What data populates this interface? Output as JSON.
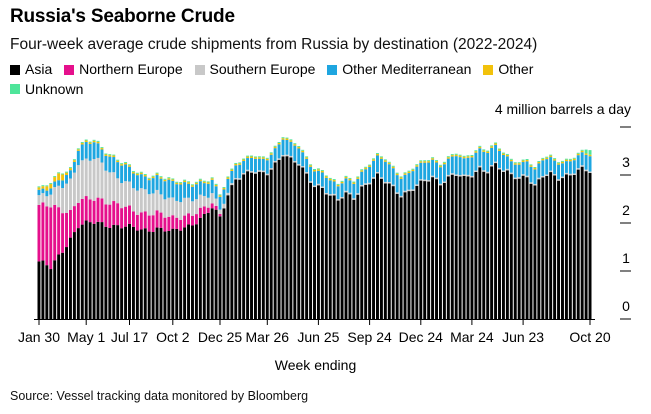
{
  "header": {
    "title": "Russia's Seaborne Crude",
    "subtitle": "Four-week average crude shipments from Russia by destination (2022-2024)"
  },
  "legend": [
    {
      "label": "Asia",
      "color": "#000000"
    },
    {
      "label": "Northern Europe",
      "color": "#e5108c"
    },
    {
      "label": "Southern Europe",
      "color": "#c8c8c8"
    },
    {
      "label": "Other Mediterranean",
      "color": "#1ea6e0"
    },
    {
      "label": "Other",
      "color": "#f2c20c"
    },
    {
      "label": "Unknown",
      "color": "#4ee59a"
    }
  ],
  "y_unit_label": "4 million barrels a day",
  "x_axis_title": "Week ending",
  "source": "Source: Vessel tracking data monitored by Bloomberg",
  "chart_data": {
    "type": "bar",
    "stacked": true,
    "title": "Russia's Seaborne Crude",
    "subtitle": "Four-week average crude shipments from Russia by destination (2022-2024)",
    "xlabel": "Week ending",
    "ylabel": "million barrels a day",
    "ylim": [
      0,
      4
    ],
    "yticks": [
      0,
      1,
      2,
      3,
      4
    ],
    "grid": false,
    "legend_position": "top-left",
    "x_tick_labels": [
      "Jan 30",
      "May 1",
      "Jul 17",
      "Oct 2",
      "Dec 25",
      "Mar 26",
      "Jun 25",
      "Sep 24",
      "Dec 24",
      "Mar 24",
      "Jun 23",
      "Oct 20"
    ],
    "x_tick_positions": [
      0,
      12,
      23,
      34,
      46,
      58,
      71,
      84,
      97,
      110,
      123,
      140
    ],
    "bar_count": 141,
    "anchors": {
      "Asia": [
        [
          0,
          1.2
        ],
        [
          3,
          1.05
        ],
        [
          5,
          1.3
        ],
        [
          10,
          1.95
        ],
        [
          14,
          2.0
        ],
        [
          20,
          1.95
        ],
        [
          26,
          1.85
        ],
        [
          30,
          1.9
        ],
        [
          34,
          1.8
        ],
        [
          38,
          1.95
        ],
        [
          42,
          2.15
        ],
        [
          44,
          2.3
        ],
        [
          46,
          2.1
        ],
        [
          48,
          2.6
        ],
        [
          50,
          2.95
        ],
        [
          54,
          3.05
        ],
        [
          56,
          3.0
        ],
        [
          58,
          3.05
        ],
        [
          60,
          3.25
        ],
        [
          62,
          3.45
        ],
        [
          64,
          3.3
        ],
        [
          66,
          3.2
        ],
        [
          68,
          3.0
        ],
        [
          70,
          2.8
        ],
        [
          72,
          2.75
        ],
        [
          74,
          2.55
        ],
        [
          76,
          2.45
        ],
        [
          78,
          2.6
        ],
        [
          80,
          2.55
        ],
        [
          82,
          2.75
        ],
        [
          84,
          2.85
        ],
        [
          86,
          2.95
        ],
        [
          88,
          2.85
        ],
        [
          90,
          2.75
        ],
        [
          92,
          2.6
        ],
        [
          94,
          2.65
        ],
        [
          96,
          2.75
        ],
        [
          98,
          2.85
        ],
        [
          100,
          2.95
        ],
        [
          102,
          2.85
        ],
        [
          104,
          2.95
        ],
        [
          106,
          3.0
        ],
        [
          108,
          2.9
        ],
        [
          110,
          3.0
        ],
        [
          112,
          3.15
        ],
        [
          114,
          3.1
        ],
        [
          116,
          3.2
        ],
        [
          118,
          3.05
        ],
        [
          120,
          3.0
        ],
        [
          122,
          2.95
        ],
        [
          124,
          3.0
        ],
        [
          126,
          2.75
        ],
        [
          128,
          2.95
        ],
        [
          130,
          3.0
        ],
        [
          132,
          2.95
        ],
        [
          134,
          3.0
        ],
        [
          136,
          3.05
        ],
        [
          138,
          3.1
        ],
        [
          140,
          3.05
        ]
      ],
      "Northern Europe": [
        [
          0,
          1.15
        ],
        [
          3,
          1.3
        ],
        [
          5,
          1.0
        ],
        [
          8,
          0.55
        ],
        [
          12,
          0.5
        ],
        [
          16,
          0.5
        ],
        [
          20,
          0.45
        ],
        [
          24,
          0.35
        ],
        [
          28,
          0.35
        ],
        [
          32,
          0.3
        ],
        [
          36,
          0.25
        ],
        [
          40,
          0.2
        ],
        [
          44,
          0.1
        ],
        [
          46,
          0.05
        ],
        [
          47,
          0.0
        ],
        [
          140,
          0.0
        ]
      ],
      "Southern Europe": [
        [
          0,
          0.2
        ],
        [
          3,
          0.25
        ],
        [
          5,
          0.45
        ],
        [
          8,
          0.65
        ],
        [
          10,
          0.8
        ],
        [
          12,
          0.8
        ],
        [
          14,
          0.85
        ],
        [
          17,
          0.7
        ],
        [
          20,
          0.55
        ],
        [
          24,
          0.5
        ],
        [
          28,
          0.45
        ],
        [
          32,
          0.4
        ],
        [
          36,
          0.35
        ],
        [
          40,
          0.3
        ],
        [
          44,
          0.2
        ],
        [
          46,
          0.1
        ],
        [
          48,
          0.05
        ],
        [
          50,
          0.03
        ],
        [
          140,
          0.03
        ]
      ],
      "Other Mediterranean": [
        [
          0,
          0.1
        ],
        [
          3,
          0.1
        ],
        [
          8,
          0.2
        ],
        [
          12,
          0.35
        ],
        [
          16,
          0.3
        ],
        [
          20,
          0.35
        ],
        [
          24,
          0.3
        ],
        [
          28,
          0.3
        ],
        [
          32,
          0.35
        ],
        [
          36,
          0.35
        ],
        [
          40,
          0.3
        ],
        [
          44,
          0.25
        ],
        [
          48,
          0.3
        ],
        [
          52,
          0.25
        ],
        [
          56,
          0.25
        ],
        [
          60,
          0.3
        ],
        [
          64,
          0.3
        ],
        [
          68,
          0.3
        ],
        [
          72,
          0.3
        ],
        [
          76,
          0.25
        ],
        [
          80,
          0.3
        ],
        [
          84,
          0.3
        ],
        [
          88,
          0.4
        ],
        [
          92,
          0.35
        ],
        [
          96,
          0.35
        ],
        [
          100,
          0.35
        ],
        [
          104,
          0.35
        ],
        [
          108,
          0.35
        ],
        [
          112,
          0.4
        ],
        [
          116,
          0.35
        ],
        [
          120,
          0.25
        ],
        [
          124,
          0.3
        ],
        [
          128,
          0.3
        ],
        [
          132,
          0.3
        ],
        [
          136,
          0.25
        ],
        [
          140,
          0.3
        ]
      ],
      "Other": [
        [
          0,
          0.05
        ],
        [
          3,
          0.1
        ],
        [
          5,
          0.15
        ],
        [
          7,
          0.05
        ],
        [
          10,
          0.03
        ],
        [
          140,
          0.03
        ]
      ],
      "Unknown": [
        [
          0,
          0.02
        ],
        [
          138,
          0.02
        ],
        [
          139,
          0.06
        ],
        [
          140,
          0.1
        ]
      ]
    }
  }
}
